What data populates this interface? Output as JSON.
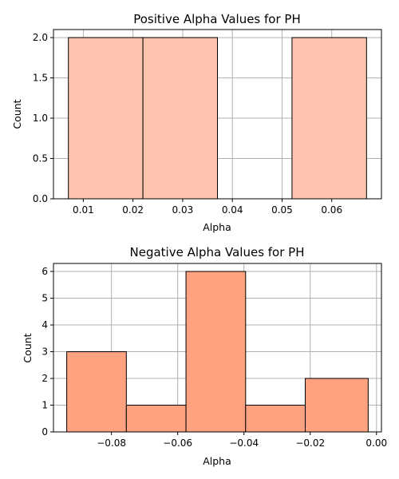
{
  "chart_data": [
    {
      "type": "bar",
      "title": "Positive Alpha Values for PH",
      "xlabel": "Alpha",
      "ylabel": "Count",
      "xlim": [
        0.004,
        0.07
      ],
      "ylim": [
        0,
        2.1
      ],
      "xticks": [
        0.01,
        0.02,
        0.03,
        0.04,
        0.05,
        0.06
      ],
      "xtick_labels": [
        "0.01",
        "0.02",
        "0.03",
        "0.04",
        "0.05",
        "0.06"
      ],
      "yticks": [
        0,
        0.5,
        1.0,
        1.5,
        2.0
      ],
      "ytick_labels": [
        "0.0",
        "0.5",
        "1.0",
        "1.5",
        "2.0"
      ],
      "bin_edges": [
        0.007,
        0.022,
        0.037,
        0.052,
        0.067
      ],
      "values": [
        2,
        2,
        0,
        2
      ],
      "color": "#ffc4b0",
      "grid": true
    },
    {
      "type": "bar",
      "title": "Negative Alpha Values for PH",
      "xlabel": "Alpha",
      "ylabel": "Count",
      "xlim": [
        -0.0975,
        0.0015
      ],
      "ylim": [
        0,
        6.3
      ],
      "xticks": [
        -0.08,
        -0.06,
        -0.04,
        -0.02,
        0.0
      ],
      "xtick_labels": [
        "−0.08",
        "−0.06",
        "−0.04",
        "−0.02",
        "0.00"
      ],
      "yticks": [
        0,
        1,
        2,
        3,
        4,
        5,
        6
      ],
      "ytick_labels": [
        "0",
        "1",
        "2",
        "3",
        "4",
        "5",
        "6"
      ],
      "bin_edges": [
        -0.0935,
        -0.0755,
        -0.0575,
        -0.0395,
        -0.0215,
        -0.0025
      ],
      "values": [
        3,
        1,
        6,
        1,
        2
      ],
      "color": "#ffa280",
      "grid": true
    }
  ]
}
